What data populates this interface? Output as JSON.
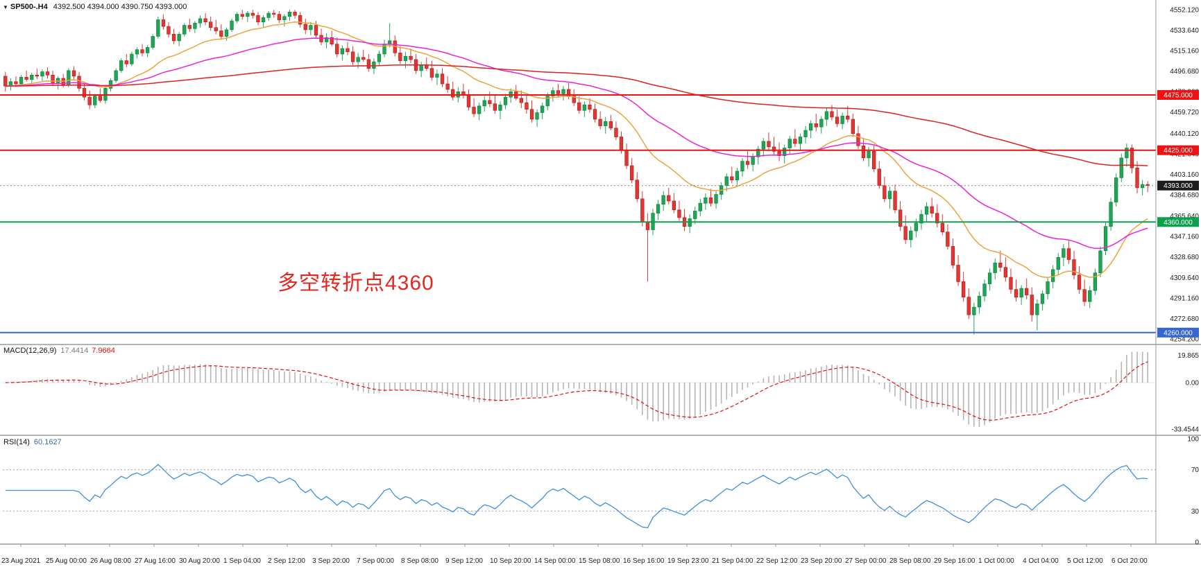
{
  "window": {
    "symbol": "SP500-.H4",
    "ohlc": "4392.500 4394.000 4390.750 4393.000"
  },
  "annotation": {
    "text": "多空转折点4360"
  },
  "indicators": {
    "macd": {
      "name": "MACD(12,26,9)",
      "fast": 12,
      "slow": 26,
      "signal": 9,
      "main_value": "17.4414",
      "signal_value": "7.9664",
      "axis_labels": [
        {
          "label": "19.865",
          "value": 19.865
        },
        {
          "label": "0.00",
          "value": 0
        },
        {
          "label": "-33.4544",
          "value": -33.4544
        }
      ]
    },
    "rsi": {
      "name": "RSI(14)",
      "period": 14,
      "value": "60.1627",
      "axis_labels": [
        {
          "label": "100",
          "value": 100
        },
        {
          "label": "70",
          "value": 70
        },
        {
          "label": "30",
          "value": 30
        },
        {
          "label": "0",
          "value": 0
        }
      ],
      "levels": [
        70,
        30
      ]
    }
  },
  "chart_data": {
    "type": "candlestick",
    "title": "SP500-.H4",
    "timeframe": "H4",
    "current_price": 4393.0,
    "price_axis_labels": [
      "4552.120",
      "4533.640",
      "4515.160",
      "4496.680",
      "4478.200",
      "4459.720",
      "4440.120",
      "4421.640",
      "4403.160",
      "4384.680",
      "4365.640",
      "4347.160",
      "4328.680",
      "4309.640",
      "4291.160",
      "4272.680",
      "4254.200"
    ],
    "time_axis": [
      "23 Aug 2021",
      "25 Aug 00:00",
      "26 Aug 08:00",
      "27 Aug 16:00",
      "30 Aug 20:00",
      "1 Sep 04:00",
      "2 Sep 12:00",
      "3 Sep 20:00",
      "7 Sep 00:00",
      "8 Sep 08:00",
      "9 Sep 12:00",
      "10 Sep 20:00",
      "14 Sep 00:00",
      "15 Sep 08:00",
      "16 Sep 16:00",
      "19 Sep 23:00",
      "21 Sep 04:00",
      "22 Sep 12:00",
      "23 Sep 20:00",
      "27 Sep 00:00",
      "28 Sep 08:00",
      "29 Sep 16:00",
      "1 Oct 00:00",
      "4 Oct 04:00",
      "5 Oct 12:00",
      "6 Oct 20:00"
    ],
    "moving_averages": [
      {
        "period": 20,
        "color": "#eda33c",
        "name": "ma-fast-orange"
      },
      {
        "period": 50,
        "color": "#e822dc",
        "name": "ma-mid-magenta"
      },
      {
        "period": 200,
        "color": "#dd2020",
        "name": "ma-slow-red"
      }
    ],
    "hlines": [
      {
        "price": 4475,
        "label": "4475.000",
        "color": "#ee1212",
        "label_bg": "#ee1212",
        "width": 2,
        "style": "solid"
      },
      {
        "price": 4425,
        "label": "4425.000",
        "color": "#ee1212",
        "label_bg": "#ee1212",
        "width": 2,
        "style": "solid"
      },
      {
        "price": 4393,
        "label": "4393.000",
        "color": "#808080",
        "label_bg": "#1c1c1c",
        "width": 1,
        "style": "dotted"
      },
      {
        "price": 4360,
        "label": "4360.000",
        "color": "#0aa04c",
        "label_bg": "#0aa04c",
        "width": 2,
        "style": "solid"
      },
      {
        "price": 4260,
        "label": "4260.000",
        "color": "#3566d2",
        "label_bg": "#3566d2",
        "width": 2,
        "style": "solid"
      }
    ],
    "colors": {
      "up": "#1ea654",
      "down": "#e23632",
      "up_border": "#0d7e3c",
      "down_border": "#ad1a16",
      "macd_hist": "#b4b4b4",
      "macd_signal": "#e01010",
      "rsi_line": "#3c8fe0",
      "rsi_level": "#9a9ac2",
      "axis_text": "#1a1a1a"
    },
    "candles": [
      [
        4492,
        4496,
        4478,
        4483
      ],
      [
        4483,
        4490,
        4479,
        4487
      ],
      [
        4487,
        4492,
        4482,
        4485
      ],
      [
        4485,
        4493,
        4483,
        4491
      ],
      [
        4491,
        4497,
        4487,
        4489
      ],
      [
        4489,
        4495,
        4486,
        4493
      ],
      [
        4493,
        4499,
        4489,
        4492
      ],
      [
        4492,
        4498,
        4487,
        4496
      ],
      [
        4496,
        4500,
        4490,
        4493
      ],
      [
        4493,
        4497,
        4484,
        4486
      ],
      [
        4486,
        4492,
        4480,
        4490
      ],
      [
        4490,
        4494,
        4482,
        4484
      ],
      [
        4484,
        4499,
        4482,
        4497
      ],
      [
        4497,
        4501,
        4489,
        4492
      ],
      [
        4492,
        4496,
        4478,
        4481
      ],
      [
        4481,
        4486,
        4470,
        4473
      ],
      [
        4473,
        4479,
        4462,
        4466
      ],
      [
        4466,
        4476,
        4463,
        4474
      ],
      [
        4474,
        4481,
        4468,
        4470
      ],
      [
        4470,
        4483,
        4467,
        4481
      ],
      [
        4481,
        4490,
        4478,
        4488
      ],
      [
        4488,
        4499,
        4486,
        4497
      ],
      [
        4497,
        4508,
        4495,
        4506
      ],
      [
        4506,
        4512,
        4500,
        4503
      ],
      [
        4503,
        4514,
        4501,
        4512
      ],
      [
        4512,
        4518,
        4508,
        4516
      ],
      [
        4516,
        4521,
        4510,
        4513
      ],
      [
        4513,
        4520,
        4509,
        4518
      ],
      [
        4518,
        4530,
        4516,
        4528
      ],
      [
        4528,
        4546,
        4526,
        4543
      ],
      [
        4543,
        4548,
        4534,
        4537
      ],
      [
        4537,
        4541,
        4527,
        4530
      ],
      [
        4530,
        4535,
        4521,
        4524
      ],
      [
        4524,
        4532,
        4519,
        4530
      ],
      [
        4530,
        4540,
        4528,
        4538
      ],
      [
        4538,
        4544,
        4532,
        4535
      ],
      [
        4535,
        4542,
        4531,
        4540
      ],
      [
        4540,
        4547,
        4536,
        4544
      ],
      [
        4544,
        4549,
        4538,
        4541
      ],
      [
        4541,
        4546,
        4533,
        4536
      ],
      [
        4536,
        4543,
        4530,
        4533
      ],
      [
        4533,
        4539,
        4525,
        4528
      ],
      [
        4528,
        4536,
        4524,
        4534
      ],
      [
        4534,
        4544,
        4532,
        4542
      ],
      [
        4542,
        4550,
        4540,
        4548
      ],
      [
        4548,
        4552,
        4543,
        4546
      ],
      [
        4546,
        4551,
        4541,
        4549
      ],
      [
        4549,
        4552,
        4544,
        4547
      ],
      [
        4547,
        4550,
        4538,
        4541
      ],
      [
        4541,
        4547,
        4536,
        4545
      ],
      [
        4545,
        4551,
        4542,
        4549
      ],
      [
        4549,
        4552,
        4545,
        4548
      ],
      [
        4548,
        4551,
        4540,
        4543
      ],
      [
        4543,
        4548,
        4537,
        4546
      ],
      [
        4546,
        4552,
        4542,
        4550
      ],
      [
        4550,
        4552,
        4544,
        4547
      ],
      [
        4547,
        4550,
        4536,
        4539
      ],
      [
        4539,
        4544,
        4530,
        4534
      ],
      [
        4534,
        4541,
        4529,
        4538
      ],
      [
        4538,
        4542,
        4526,
        4529
      ],
      [
        4529,
        4535,
        4520,
        4523
      ],
      [
        4523,
        4531,
        4517,
        4527
      ],
      [
        4527,
        4533,
        4519,
        4521
      ],
      [
        4521,
        4527,
        4509,
        4512
      ],
      [
        4512,
        4520,
        4506,
        4517
      ],
      [
        4517,
        4523,
        4511,
        4514
      ],
      [
        4514,
        4519,
        4502,
        4505
      ],
      [
        4505,
        4513,
        4499,
        4509
      ],
      [
        4509,
        4516,
        4505,
        4507
      ],
      [
        4507,
        4512,
        4496,
        4499
      ],
      [
        4499,
        4508,
        4494,
        4505
      ],
      [
        4505,
        4515,
        4501,
        4512
      ],
      [
        4512,
        4525,
        4509,
        4521
      ],
      [
        4521,
        4540,
        4518,
        4524
      ],
      [
        4524,
        4529,
        4510,
        4513
      ],
      [
        4513,
        4519,
        4503,
        4506
      ],
      [
        4506,
        4514,
        4499,
        4510
      ],
      [
        4510,
        4517,
        4504,
        4507
      ],
      [
        4507,
        4512,
        4494,
        4497
      ],
      [
        4497,
        4505,
        4491,
        4502
      ],
      [
        4502,
        4509,
        4497,
        4499
      ],
      [
        4499,
        4506,
        4488,
        4491
      ],
      [
        4491,
        4498,
        4484,
        4494
      ],
      [
        4494,
        4499,
        4482,
        4485
      ],
      [
        4485,
        4492,
        4477,
        4480
      ],
      [
        4480,
        4487,
        4470,
        4473
      ],
      [
        4473,
        4482,
        4468,
        4478
      ],
      [
        4478,
        4485,
        4472,
        4475
      ],
      [
        4475,
        4480,
        4461,
        4464
      ],
      [
        4464,
        4472,
        4455,
        4458
      ],
      [
        4458,
        4468,
        4452,
        4465
      ],
      [
        4465,
        4474,
        4460,
        4470
      ],
      [
        4470,
        4478,
        4464,
        4467
      ],
      [
        4467,
        4475,
        4458,
        4461
      ],
      [
        4461,
        4469,
        4453,
        4466
      ],
      [
        4466,
        4476,
        4462,
        4473
      ],
      [
        4473,
        4481,
        4468,
        4478
      ],
      [
        4478,
        4484,
        4470,
        4472
      ],
      [
        4472,
        4479,
        4463,
        4468
      ],
      [
        4468,
        4475,
        4458,
        4462
      ],
      [
        4462,
        4470,
        4450,
        4453
      ],
      [
        4453,
        4462,
        4446,
        4459
      ],
      [
        4459,
        4468,
        4453,
        4465
      ],
      [
        4465,
        4477,
        4461,
        4474
      ],
      [
        4474,
        4482,
        4469,
        4479
      ],
      [
        4479,
        4485,
        4473,
        4476
      ],
      [
        4476,
        4483,
        4470,
        4480
      ],
      [
        4480,
        4486,
        4471,
        4474
      ],
      [
        4474,
        4480,
        4465,
        4468
      ],
      [
        4468,
        4474,
        4458,
        4461
      ],
      [
        4461,
        4469,
        4455,
        4466
      ],
      [
        4466,
        4472,
        4459,
        4462
      ],
      [
        4462,
        4467,
        4450,
        4453
      ],
      [
        4453,
        4460,
        4444,
        4447
      ],
      [
        4447,
        4455,
        4440,
        4451
      ],
      [
        4451,
        4457,
        4443,
        4445
      ],
      [
        4445,
        4451,
        4434,
        4437
      ],
      [
        4437,
        4442,
        4422,
        4425
      ],
      [
        4425,
        4431,
        4408,
        4411
      ],
      [
        4411,
        4418,
        4395,
        4398
      ],
      [
        4398,
        4405,
        4378,
        4381
      ],
      [
        4381,
        4388,
        4356,
        4360
      ],
      [
        4360,
        4368,
        4306,
        4353
      ],
      [
        4353,
        4372,
        4348,
        4368
      ],
      [
        4368,
        4380,
        4362,
        4376
      ],
      [
        4376,
        4388,
        4370,
        4384
      ],
      [
        4384,
        4391,
        4376,
        4379
      ],
      [
        4379,
        4386,
        4368,
        4371
      ],
      [
        4371,
        4379,
        4361,
        4364
      ],
      [
        4364,
        4372,
        4352,
        4356
      ],
      [
        4356,
        4367,
        4350,
        4363
      ],
      [
        4363,
        4374,
        4358,
        4370
      ],
      [
        4370,
        4381,
        4365,
        4377
      ],
      [
        4377,
        4386,
        4371,
        4382
      ],
      [
        4382,
        4390,
        4374,
        4377
      ],
      [
        4377,
        4388,
        4372,
        4385
      ],
      [
        4385,
        4396,
        4380,
        4393
      ],
      [
        4393,
        4404,
        4388,
        4401
      ],
      [
        4401,
        4410,
        4395,
        4398
      ],
      [
        4398,
        4409,
        4393,
        4406
      ],
      [
        4406,
        4418,
        4401,
        4415
      ],
      [
        4415,
        4424,
        4408,
        4412
      ],
      [
        4412,
        4422,
        4406,
        4419
      ],
      [
        4419,
        4429,
        4412,
        4426
      ],
      [
        4426,
        4436,
        4419,
        4433
      ],
      [
        4433,
        4441,
        4424,
        4428
      ],
      [
        4428,
        4437,
        4420,
        4424
      ],
      [
        4424,
        4432,
        4415,
        4420
      ],
      [
        4420,
        4430,
        4413,
        4427
      ],
      [
        4427,
        4438,
        4422,
        4435
      ],
      [
        4435,
        4444,
        4428,
        4431
      ],
      [
        4431,
        4440,
        4424,
        4437
      ],
      [
        4437,
        4447,
        4431,
        4443
      ],
      [
        4443,
        4452,
        4436,
        4449
      ],
      [
        4449,
        4458,
        4442,
        4446
      ],
      [
        4446,
        4456,
        4440,
        4453
      ],
      [
        4453,
        4463,
        4447,
        4460
      ],
      [
        4460,
        4466,
        4452,
        4455
      ],
      [
        4455,
        4462,
        4446,
        4449
      ],
      [
        4449,
        4459,
        4444,
        4456
      ],
      [
        4456,
        4465,
        4450,
        4453
      ],
      [
        4453,
        4458,
        4437,
        4440
      ],
      [
        4440,
        4447,
        4426,
        4429
      ],
      [
        4429,
        4436,
        4415,
        4418
      ],
      [
        4418,
        4428,
        4410,
        4424
      ],
      [
        4424,
        4430,
        4405,
        4408
      ],
      [
        4408,
        4415,
        4390,
        4393
      ],
      [
        4393,
        4401,
        4378,
        4381
      ],
      [
        4381,
        4392,
        4372,
        4388
      ],
      [
        4388,
        4394,
        4368,
        4371
      ],
      [
        4371,
        4379,
        4352,
        4356
      ],
      [
        4356,
        4366,
        4340,
        4344
      ],
      [
        4344,
        4356,
        4337,
        4352
      ],
      [
        4352,
        4363,
        4346,
        4359
      ],
      [
        4359,
        4371,
        4353,
        4367
      ],
      [
        4367,
        4378,
        4360,
        4374
      ],
      [
        4374,
        4382,
        4364,
        4368
      ],
      [
        4368,
        4376,
        4355,
        4359
      ],
      [
        4359,
        4367,
        4348,
        4351
      ],
      [
        4351,
        4358,
        4335,
        4338
      ],
      [
        4338,
        4345,
        4318,
        4321
      ],
      [
        4321,
        4330,
        4302,
        4306
      ],
      [
        4306,
        4315,
        4288,
        4292
      ],
      [
        4292,
        4300,
        4272,
        4276
      ],
      [
        4276,
        4287,
        4258,
        4283
      ],
      [
        4283,
        4297,
        4277,
        4293
      ],
      [
        4293,
        4308,
        4288,
        4304
      ],
      [
        4304,
        4318,
        4298,
        4314
      ],
      [
        4314,
        4327,
        4308,
        4323
      ],
      [
        4323,
        4334,
        4315,
        4319
      ],
      [
        4319,
        4328,
        4306,
        4310
      ],
      [
        4310,
        4318,
        4295,
        4299
      ],
      [
        4299,
        4308,
        4288,
        4292
      ],
      [
        4292,
        4303,
        4285,
        4300
      ],
      [
        4300,
        4309,
        4290,
        4294
      ],
      [
        4294,
        4301,
        4270,
        4276
      ],
      [
        4276,
        4290,
        4262,
        4286
      ],
      [
        4286,
        4298,
        4280,
        4295
      ],
      [
        4295,
        4310,
        4290,
        4306
      ],
      [
        4306,
        4321,
        4300,
        4317
      ],
      [
        4317,
        4332,
        4312,
        4328
      ],
      [
        4328,
        4340,
        4320,
        4336
      ],
      [
        4336,
        4344,
        4322,
        4326
      ],
      [
        4326,
        4334,
        4308,
        4312
      ],
      [
        4312,
        4320,
        4295,
        4299
      ],
      [
        4299,
        4308,
        4284,
        4288
      ],
      [
        4288,
        4302,
        4282,
        4298
      ],
      [
        4298,
        4318,
        4294,
        4314
      ],
      [
        4314,
        4338,
        4310,
        4334
      ],
      [
        4334,
        4360,
        4330,
        4356
      ],
      [
        4356,
        4382,
        4352,
        4378
      ],
      [
        4378,
        4404,
        4374,
        4400
      ],
      [
        4400,
        4422,
        4396,
        4418
      ],
      [
        4418,
        4431,
        4410,
        4427
      ],
      [
        4427,
        4430,
        4404,
        4409
      ],
      [
        4409,
        4415,
        4386,
        4391
      ],
      [
        4391,
        4398,
        4384,
        4394
      ],
      [
        4394,
        4397,
        4387,
        4393
      ]
    ]
  }
}
